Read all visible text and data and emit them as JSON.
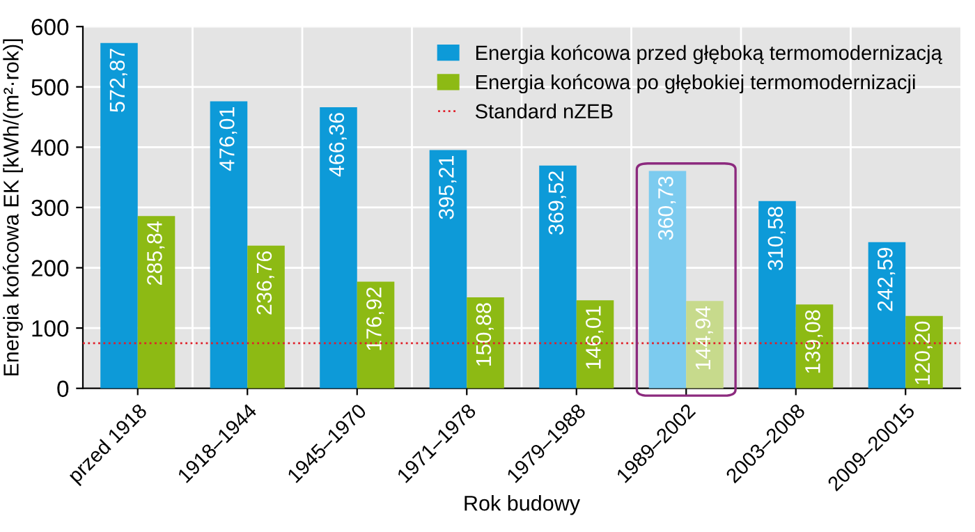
{
  "chart_data": {
    "type": "bar",
    "xlabel": "Rok budowy",
    "ylabel": "Energia końcowa EK [kWh/(m²·rok)]",
    "categories": [
      "przed 1918",
      "1918–1944",
      "1945–1970",
      "1971–1978",
      "1979–1988",
      "1989–2002",
      "2003–2008",
      "2009–20015"
    ],
    "series": [
      {
        "name": "Energia końcowa przed głęboką termomodernizacją",
        "color": "#0d9ad8",
        "colors": [
          "#0d9ad8",
          "#0d9ad8",
          "#0d9ad8",
          "#0d9ad8",
          "#0d9ad8",
          "#7ccbef",
          "#0d9ad8",
          "#0d9ad8"
        ],
        "values": [
          572.87,
          476.01,
          466.36,
          395.21,
          369.52,
          360.73,
          310.58,
          242.59
        ],
        "value_labels": [
          "572,87",
          "476,01",
          "466,36",
          "395,21",
          "369,52",
          "360,73",
          "310,58",
          "242,59"
        ]
      },
      {
        "name": "Energia końcowa po głębokiej termomodernizacji",
        "color": "#8dba14",
        "colors": [
          "#8dba14",
          "#8dba14",
          "#8dba14",
          "#8dba14",
          "#8dba14",
          "#c7da8c",
          "#8dba14",
          "#8dba14"
        ],
        "values": [
          285.84,
          236.76,
          176.92,
          150.88,
          146.01,
          144.94,
          139.08,
          120.2
        ],
        "value_labels": [
          "285,84",
          "236,76",
          "176,92",
          "150,88",
          "146,01",
          "144,94",
          "139,08",
          "120,20"
        ]
      }
    ],
    "ref_lines": [
      {
        "axis": "y",
        "value": 75,
        "label": "Standard nZEB",
        "color": "#e0202a",
        "line_style": "dotted"
      }
    ],
    "ylim": [
      0,
      600
    ],
    "yticks": [
      0,
      100,
      200,
      300,
      400,
      500,
      600
    ],
    "grid": "y",
    "legend": "top right"
  }
}
